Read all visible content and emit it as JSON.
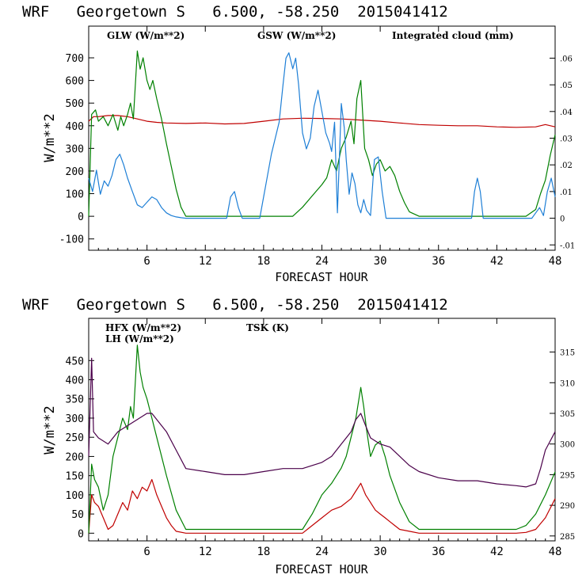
{
  "colors": {
    "red": "#c00000",
    "green": "#008000",
    "blue": "#1e7fd6",
    "purple": "#4a004a",
    "frame": "#000000"
  },
  "chart_data": [
    {
      "type": "line",
      "title": "WRF   Georgetown S   6.500, -58.250  2015041412",
      "xlabel": "FORECAST HOUR",
      "ylabel": "W/m**2",
      "xlim": [
        0,
        48
      ],
      "ylim": [
        -150,
        840
      ],
      "xticks": [
        6,
        12,
        18,
        24,
        30,
        36,
        42,
        48
      ],
      "yticks": [
        -100,
        0,
        100,
        200,
        300,
        400,
        500,
        600,
        700
      ],
      "y2lim": [
        -0.012,
        0.072
      ],
      "y2ticks": [
        -0.01,
        0,
        0.01,
        0.02,
        0.03,
        0.04,
        0.05,
        0.06
      ],
      "y2ticklabels": [
        "-.01",
        "0",
        ".01",
        ".02",
        ".03",
        ".04",
        ".05",
        ".06"
      ],
      "series": [
        {
          "name": "GLW (W/m**2)",
          "color": "#c00000",
          "axis": "left",
          "x": [
            0,
            0.5,
            1,
            2,
            3,
            4,
            5,
            6,
            7,
            8,
            10,
            12,
            14,
            16,
            18,
            20,
            22,
            24,
            26,
            28,
            30,
            32,
            34,
            36,
            38,
            40,
            42,
            44,
            46,
            47,
            48
          ],
          "values": [
            420,
            440,
            440,
            445,
            445,
            440,
            430,
            420,
            415,
            412,
            410,
            412,
            408,
            410,
            420,
            430,
            433,
            432,
            430,
            425,
            420,
            412,
            405,
            402,
            400,
            400,
            395,
            393,
            395,
            405,
            395
          ]
        },
        {
          "name": "GSW (W/m**2)",
          "color": "#008000",
          "axis": "left",
          "x": [
            0,
            0.3,
            0.7,
            1,
            1.5,
            2,
            2.5,
            3,
            3.3,
            3.6,
            4,
            4.3,
            4.6,
            5,
            5.3,
            5.6,
            6,
            6.3,
            6.6,
            7,
            7.5,
            8,
            8.5,
            9,
            9.5,
            10,
            21,
            22,
            23,
            24,
            24.5,
            25,
            25.5,
            26,
            26.5,
            27,
            27.3,
            27.6,
            28,
            28.4,
            28.8,
            29.2,
            29.6,
            30,
            30.5,
            31,
            31.5,
            32,
            32.5,
            33,
            34,
            45,
            46,
            46.5,
            47,
            47.5,
            48
          ],
          "values": [
            0,
            450,
            470,
            420,
            440,
            400,
            450,
            380,
            440,
            400,
            450,
            500,
            430,
            730,
            650,
            700,
            600,
            560,
            600,
            520,
            430,
            320,
            220,
            120,
            40,
            0,
            0,
            40,
            90,
            140,
            170,
            250,
            200,
            300,
            350,
            420,
            320,
            520,
            600,
            300,
            250,
            180,
            230,
            250,
            200,
            220,
            180,
            110,
            60,
            20,
            0,
            0,
            30,
            100,
            160,
            270,
            360
          ]
        },
        {
          "name": "Integrated cloud (mm)",
          "color": "#1e7fd6",
          "axis": "right",
          "x": [
            0,
            0.4,
            0.8,
            1.2,
            1.6,
            2,
            2.4,
            2.8,
            3.2,
            3.6,
            4,
            4.5,
            5,
            5.5,
            6,
            6.5,
            7,
            7.5,
            8,
            8.5,
            9,
            9.5,
            10,
            14.2,
            14.6,
            15,
            15.4,
            15.8,
            17.6,
            18,
            18.4,
            18.8,
            19.2,
            19.6,
            20,
            20.3,
            20.6,
            21,
            21.3,
            21.6,
            22,
            22.4,
            22.8,
            23.2,
            23.6,
            24,
            24.4,
            24.8,
            25,
            25.3,
            25.6,
            26,
            26.3,
            26.5,
            26.8,
            27.1,
            27.4,
            27.7,
            28,
            28.3,
            28.6,
            29,
            29.4,
            29.8,
            30.2,
            30.6,
            39.4,
            39.7,
            40,
            40.3,
            40.6,
            45.6,
            46,
            46.4,
            46.8,
            47.2,
            47.6,
            48
          ],
          "values": [
            0.015,
            0.01,
            0.018,
            0.009,
            0.014,
            0.012,
            0.016,
            0.022,
            0.024,
            0.02,
            0.015,
            0.01,
            0.005,
            0.004,
            0.006,
            0.008,
            0.007,
            0.004,
            0.002,
            0.001,
            0.0005,
            0.0002,
            0,
            0,
            0.008,
            0.01,
            0.004,
            0,
            0,
            0.008,
            0.016,
            0.024,
            0.03,
            0.036,
            0.05,
            0.06,
            0.062,
            0.056,
            0.06,
            0.05,
            0.032,
            0.026,
            0.03,
            0.042,
            0.048,
            0.04,
            0.032,
            0.028,
            0.025,
            0.036,
            0.002,
            0.043,
            0.034,
            0.022,
            0.009,
            0.017,
            0.013,
            0.005,
            0.002,
            0.007,
            0.003,
            0.001,
            0.022,
            0.023,
            0.01,
            0,
            0,
            0.01,
            0.015,
            0.01,
            0,
            0,
            0.002,
            0.004,
            0.001,
            0.01,
            0.015,
            0.008
          ]
        }
      ]
    },
    {
      "type": "line",
      "title": "WRF   Georgetown S   6.500, -58.250  2015041412",
      "xlabel": "FORECAST HOUR",
      "ylabel": "W/m**2",
      "xlim": [
        0,
        48
      ],
      "ylim": [
        -20,
        560
      ],
      "xticks": [
        6,
        12,
        18,
        24,
        30,
        36,
        42,
        48
      ],
      "yticks": [
        0,
        50,
        100,
        150,
        200,
        250,
        300,
        350,
        400,
        450
      ],
      "y2lim": [
        284.2,
        320.5
      ],
      "y2ticks": [
        285,
        290,
        295,
        300,
        305,
        310,
        315
      ],
      "series": [
        {
          "name": "HFX (W/m**2)",
          "color": "#c00000",
          "axis": "left",
          "x": [
            0,
            0.3,
            0.6,
            1,
            1.5,
            2,
            2.5,
            3,
            3.5,
            4,
            4.5,
            5,
            5.5,
            6,
            6.5,
            7,
            7.5,
            8,
            8.5,
            9,
            10,
            14,
            18,
            22,
            23,
            24,
            25,
            26,
            27,
            27.5,
            28,
            28.5,
            29,
            29.5,
            30,
            30.5,
            31,
            31.5,
            32,
            33,
            34,
            36,
            40,
            44,
            45,
            46,
            47,
            48
          ],
          "values": [
            0,
            100,
            80,
            70,
            40,
            10,
            20,
            50,
            80,
            60,
            110,
            90,
            120,
            110,
            140,
            100,
            70,
            40,
            20,
            5,
            0,
            0,
            0,
            0,
            20,
            40,
            60,
            70,
            90,
            110,
            130,
            100,
            80,
            60,
            50,
            40,
            30,
            20,
            10,
            5,
            0,
            0,
            0,
            0,
            2,
            10,
            40,
            90
          ]
        },
        {
          "name": "LH (W/m**2)",
          "color": "#008000",
          "axis": "left",
          "x": [
            0,
            0.3,
            0.6,
            1,
            1.5,
            2,
            2.5,
            3,
            3.5,
            4,
            4.3,
            4.6,
            5,
            5.3,
            5.6,
            6,
            6.5,
            7,
            8,
            9,
            10,
            12,
            18,
            22,
            23,
            24,
            25,
            26,
            26.5,
            27,
            27.5,
            28,
            28.3,
            28.6,
            29,
            29.5,
            30,
            30.5,
            31,
            32,
            33,
            34,
            36,
            40,
            44,
            45,
            46,
            47,
            48
          ],
          "values": [
            0,
            180,
            140,
            120,
            60,
            100,
            200,
            250,
            300,
            270,
            330,
            300,
            490,
            420,
            380,
            350,
            300,
            250,
            150,
            60,
            10,
            10,
            10,
            10,
            50,
            100,
            130,
            170,
            200,
            250,
            300,
            380,
            330,
            270,
            200,
            230,
            240,
            200,
            150,
            80,
            30,
            10,
            10,
            10,
            10,
            20,
            50,
            100,
            160
          ]
        },
        {
          "name": "TSK (K)",
          "color": "#4a004a",
          "axis": "right",
          "x": [
            0,
            0.3,
            0.5,
            1,
            2,
            3,
            4,
            5,
            6,
            6.5,
            7,
            8,
            9,
            10,
            12,
            14,
            16,
            18,
            20,
            22,
            24,
            25,
            26,
            27,
            27.5,
            28,
            28.5,
            29,
            30,
            31,
            32,
            33,
            34,
            36,
            38,
            40,
            42,
            44,
            45,
            46,
            46.5,
            47,
            48
          ],
          "values": [
            298,
            314,
            302,
            301,
            300,
            302,
            303,
            304,
            305,
            305,
            304,
            302,
            299,
            296,
            295.5,
            295,
            295,
            295.5,
            296,
            296,
            297,
            298,
            300,
            302,
            304,
            305,
            303,
            301,
            300,
            299.5,
            298,
            296.5,
            295.5,
            294.5,
            294,
            294,
            293.5,
            293.2,
            293,
            293.5,
            296,
            299,
            302
          ]
        }
      ]
    }
  ],
  "panels": [
    {
      "title": "WRF   Georgetown S   6.500, -58.250  2015041412",
      "xlabel": "FORECAST HOUR",
      "ylabel": "W/m**2",
      "legend": [
        "GLW (W/m**2)",
        "GSW (W/m**2)",
        "Integrated cloud (mm)"
      ]
    },
    {
      "title": "WRF   Georgetown S   6.500, -58.250  2015041412",
      "xlabel": "FORECAST HOUR",
      "ylabel": "W/m**2",
      "legend": [
        "HFX (W/m**2)",
        "LH (W/m**2)",
        "TSK (K)"
      ]
    }
  ]
}
